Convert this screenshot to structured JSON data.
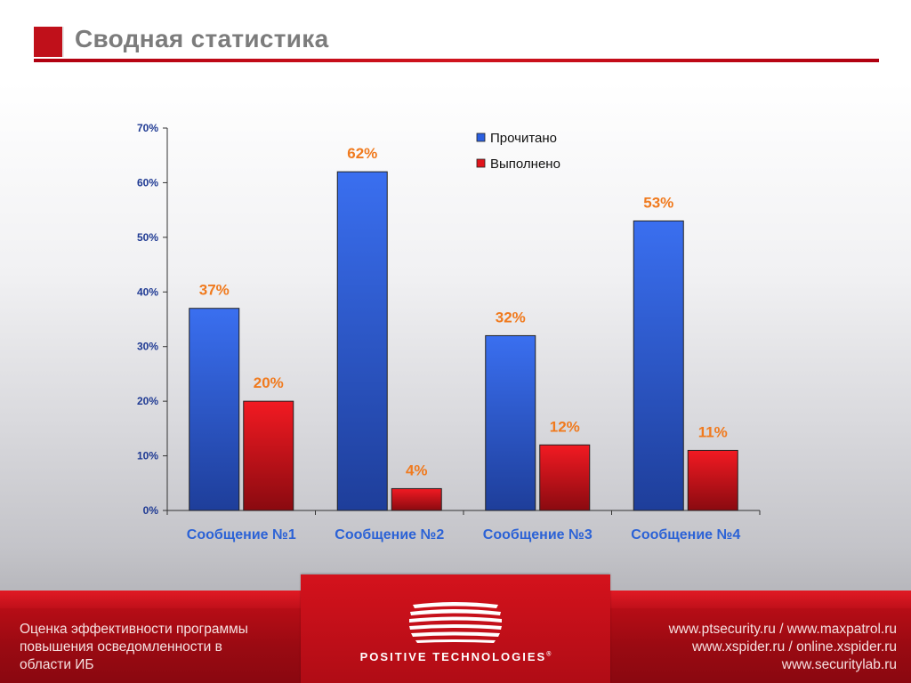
{
  "slide": {
    "title": "Сводная статистика"
  },
  "colors": {
    "accent_red": "#c0101a",
    "bar_blue": "#2b5fe0",
    "bar_red": "#e0141c",
    "data_label": "#f07a1e",
    "category_label": "#2b62d6"
  },
  "chart_data": {
    "type": "bar",
    "categories": [
      "Сообщение №1",
      "Сообщение №2",
      "Сообщение №3",
      "Сообщение №4"
    ],
    "series": [
      {
        "name": "Прочитано",
        "values": [
          37,
          62,
          32,
          53
        ],
        "labels": [
          "37%",
          "62%",
          "32%",
          "53%"
        ],
        "color": "#2b5fe0"
      },
      {
        "name": "Выполнено",
        "values": [
          20,
          4,
          12,
          11
        ],
        "labels": [
          "20%",
          "4%",
          "12%",
          "11%"
        ],
        "color": "#e0141c"
      }
    ],
    "ylim": [
      0,
      70
    ],
    "yticks": [
      "0%",
      "10%",
      "20%",
      "30%",
      "40%",
      "50%",
      "60%",
      "70%"
    ],
    "legend": "top-right",
    "grid": false,
    "xlabel": "",
    "ylabel": ""
  },
  "footer": {
    "left_lines": [
      "Оценка эффективности программы",
      "повышения осведомленности в",
      "области ИБ"
    ],
    "brand": "POSITIVE TECHNOLOGIES",
    "brand_mark": "®",
    "right_lines": [
      "www.ptsecurity.ru / www.maxpatrol.ru",
      "www.xspider.ru / online.xspider.ru",
      "www.securitylab.ru"
    ]
  }
}
